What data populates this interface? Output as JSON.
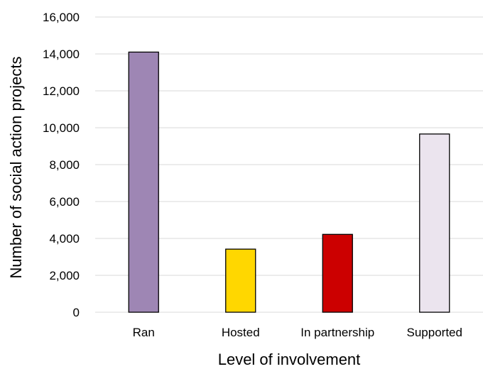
{
  "chart_data": {
    "type": "bar",
    "title": "",
    "xlabel": "Level of involvement",
    "ylabel": "Number of social action projects",
    "categories": [
      "Ran",
      "Hosted",
      "In partnership",
      "Supported"
    ],
    "values": [
      14100,
      3420,
      4220,
      9660
    ],
    "colors": [
      "#9e86b4",
      "#ffd700",
      "#cc0000",
      "#ebe4ee"
    ],
    "ylim": [
      0,
      16000
    ],
    "yticks": [
      0,
      2000,
      4000,
      6000,
      8000,
      10000,
      12000,
      14000,
      16000
    ],
    "ytick_labels": [
      "0",
      "2,000",
      "4,000",
      "6,000",
      "8,000",
      "10,000",
      "12,000",
      "14,000",
      "16,000"
    ],
    "grid": true,
    "legend": "none"
  }
}
